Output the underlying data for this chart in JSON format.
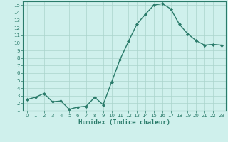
{
  "xlabel": "Humidex (Indice chaleur)",
  "x": [
    0,
    1,
    2,
    3,
    4,
    5,
    6,
    7,
    8,
    9,
    10,
    11,
    12,
    13,
    14,
    15,
    16,
    17,
    18,
    19,
    20,
    21,
    22,
    23
  ],
  "y": [
    2.5,
    2.8,
    3.3,
    2.2,
    2.3,
    1.2,
    1.5,
    1.6,
    2.8,
    1.8,
    4.8,
    7.8,
    10.2,
    12.5,
    13.8,
    15.0,
    15.2,
    14.5,
    12.5,
    11.2,
    10.3,
    9.7,
    9.8,
    9.7
  ],
  "line_color": "#2a7b6a",
  "marker": "D",
  "marker_size": 2.0,
  "bg_color": "#cff0ec",
  "grid_color": "#aad4cc",
  "axes_color": "#2a7b6a",
  "tick_color": "#2a7b6a",
  "ylim": [
    1,
    15.5
  ],
  "xlim": [
    -0.5,
    23.5
  ],
  "yticks": [
    1,
    2,
    3,
    4,
    5,
    6,
    7,
    8,
    9,
    10,
    11,
    12,
    13,
    14,
    15
  ],
  "xticks": [
    0,
    1,
    2,
    3,
    4,
    5,
    6,
    7,
    8,
    9,
    10,
    11,
    12,
    13,
    14,
    15,
    16,
    17,
    18,
    19,
    20,
    21,
    22,
    23
  ],
  "label_fontsize": 6.5,
  "tick_fontsize": 5.0,
  "linewidth": 1.0
}
